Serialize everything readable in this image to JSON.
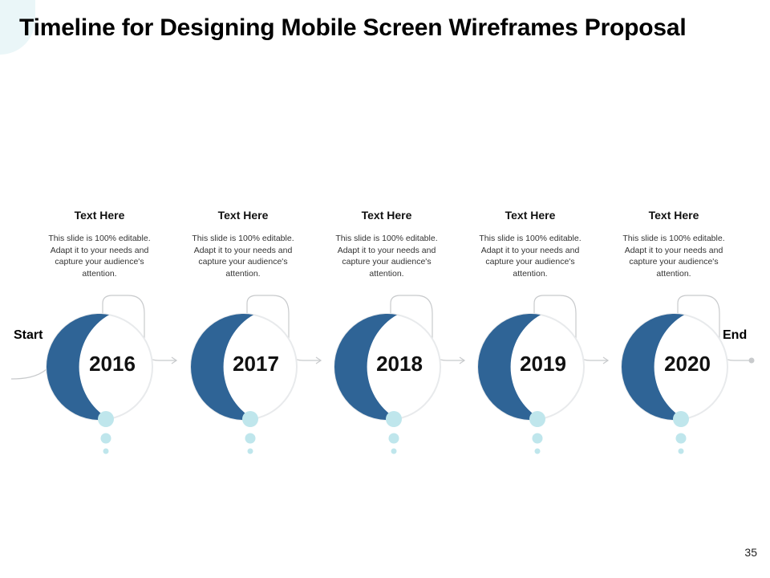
{
  "slide": {
    "title": "Timeline for Designing Mobile Screen Wireframes Proposal",
    "page_number": "35",
    "start_label": "Start",
    "end_label": "End"
  },
  "colors": {
    "accent": "#2f6496",
    "light_accent": "#bfe6ec",
    "ring": "#e8eaec",
    "connector": "#c8cacc"
  },
  "milestones": [
    {
      "year": "2016",
      "title": "Text Here",
      "text": "This slide is 100% editable. Adapt it to your needs and capture your audience's attention."
    },
    {
      "year": "2017",
      "title": "Text Here",
      "text": "This slide is 100% editable. Adapt it to your needs and capture your audience's attention."
    },
    {
      "year": "2018",
      "title": "Text Here",
      "text": "This slide is 100% editable. Adapt it to your needs and capture your audience's attention."
    },
    {
      "year": "2019",
      "title": "Text Here",
      "text": "This slide is 100% editable. Adapt it to your needs and capture your audience's attention."
    },
    {
      "year": "2020",
      "title": "Text Here",
      "text": "This slide is 100% editable. Adapt it to your needs and capture your audience's attention."
    }
  ]
}
